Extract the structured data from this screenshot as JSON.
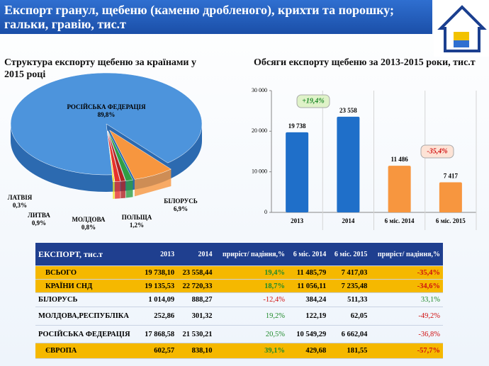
{
  "header": {
    "title": "Експорт гранул, щебеню (каменю дробленого), крихти та порошку; гальки, гравію, тис.т"
  },
  "chart_data": [
    {
      "type": "pie",
      "title": "Структура експорту щебеню за країнами у 2015 році",
      "categories": [
        "БІЛОРУСЬ",
        "ПОЛЬЩА",
        "МОЛДОВА",
        "ЛИТВА",
        "ЛАТВІЯ",
        "РОСІЙСЬКА ФЕДЕРАЦІЯ"
      ],
      "values": [
        6.9,
        1.2,
        0.8,
        0.9,
        0.3,
        89.8
      ],
      "value_labels": [
        "6,9%",
        "1,2%",
        "0,8%",
        "0,9%",
        "0,3%",
        "89,8%"
      ],
      "colors": [
        "#f7963f",
        "#2f9e44",
        "#b22222",
        "#e8322a",
        "#f2e21f",
        "#4d94dc"
      ]
    },
    {
      "type": "bar",
      "title": "Обсяги експорту щебеню за 2013-2015 роки, тис.т",
      "categories": [
        "2013",
        "2014",
        "6 міс. 2014",
        "6 міс. 2015"
      ],
      "values": [
        19738,
        23558,
        11486,
        7417
      ],
      "value_labels": [
        "19 738",
        "23 558",
        "11 486",
        "7 417"
      ],
      "colors": [
        "#1f6fc9",
        "#1f6fc9",
        "#f7963f",
        "#f7963f"
      ],
      "ylim": [
        0,
        30000
      ],
      "yticks": [
        0,
        {
          "value": 10000,
          "label": "10 000"
        },
        {
          "value": 20000,
          "label": "20 000"
        },
        {
          "value": 30000,
          "label": "30 000"
        }
      ],
      "annotations": [
        "+19,4%",
        "-35,4%"
      ]
    }
  ],
  "table": {
    "header": [
      "ЕКСПОРТ,  тис.т",
      "2013",
      "2014",
      "приріст/ падіння,%",
      "6 міс. 2014",
      "6 міс. 2015",
      "приріст/ падіння,%"
    ],
    "rows": [
      [
        "ВСЬОГО",
        "19 738,10",
        "23 558,44",
        "19,4%",
        "11 485,79",
        "7 417,03",
        "-35,4%"
      ],
      [
        "КРАЇНИ СНД",
        "19 135,53",
        "22 720,33",
        "18,7%",
        "11 056,11",
        "7 235,48",
        "-34,6%"
      ],
      [
        "БІЛОРУСЬ",
        "1 014,09",
        "888,27",
        "-12,4%",
        "384,24",
        "511,33",
        "33,1%"
      ],
      [
        "МОЛДОВА,РЕСПУБЛІКА",
        "252,86",
        "301,32",
        "19,2%",
        "122,19",
        "62,05",
        "-49,2%"
      ],
      [
        "РОСІЙСЬКА ФЕДЕРАЦІЯ",
        "17 868,58",
        "21 530,21",
        "20,5%",
        "10 549,29",
        "6 662,04",
        "-36,8%"
      ],
      [
        "ЄВРОПА",
        "602,57",
        "838,10",
        "39,1%",
        "429,68",
        "181,55",
        "-57,7%"
      ]
    ]
  }
}
